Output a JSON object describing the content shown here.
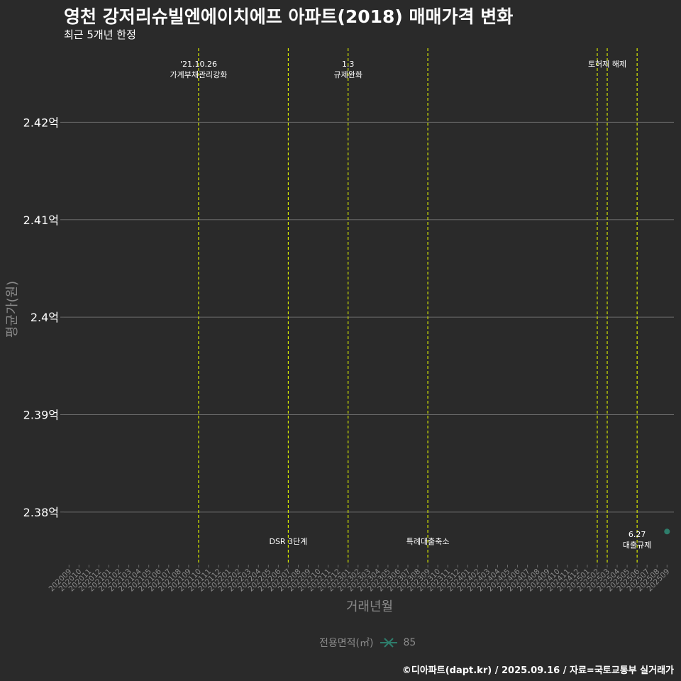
{
  "chart_data": {
    "type": "scatter",
    "title": "영천 강저리슈빌엔에이치에프 아파트(2018) 매매가격 변화",
    "subtitle": "최근 5개년 한정",
    "xlabel": "거래년월",
    "ylabel": "평균가(원)",
    "y_ticks": [
      {
        "value": 2.38,
        "label": "2.38억"
      },
      {
        "value": 2.39,
        "label": "2.39억"
      },
      {
        "value": 2.4,
        "label": "2.4억"
      },
      {
        "value": 2.41,
        "label": "2.41억"
      },
      {
        "value": 2.42,
        "label": "2.42억"
      }
    ],
    "ylim": [
      2.3746,
      2.4276
    ],
    "x_categories": [
      "202009",
      "202010",
      "202011",
      "202012",
      "202101",
      "202102",
      "202103",
      "202104",
      "202105",
      "202106",
      "202107",
      "202108",
      "202109",
      "202110",
      "202111",
      "202112",
      "202201",
      "202202",
      "202203",
      "202204",
      "202205",
      "202206",
      "202207",
      "202208",
      "202209",
      "202210",
      "202211",
      "202212",
      "202301",
      "202302",
      "202303",
      "202304",
      "202305",
      "202306",
      "202307",
      "202308",
      "202309",
      "202310",
      "202311",
      "202312",
      "202401",
      "202402",
      "202403",
      "202404",
      "202405",
      "202406",
      "202407",
      "202408",
      "202409",
      "202410",
      "202411",
      "202412",
      "202501",
      "202502",
      "202503",
      "202504",
      "202505",
      "202506",
      "202507",
      "202508",
      "202509"
    ],
    "events": [
      {
        "x": 13.0,
        "lines": [
          "'21.10.26",
          "가계부채관리강화"
        ],
        "position": "top"
      },
      {
        "x": 22.0,
        "lines": [
          "DSR 3단계"
        ],
        "position": "bottom"
      },
      {
        "x": 28.0,
        "lines": [
          "1.3",
          "규제완화"
        ],
        "position": "top"
      },
      {
        "x": 36.0,
        "lines": [
          "특례대출축소"
        ],
        "position": "bottom"
      },
      {
        "x": 53.0,
        "lines": [],
        "position": "none"
      },
      {
        "x": 54.0,
        "lines": [
          "토허제 해제"
        ],
        "position": "top"
      },
      {
        "x": 57.0,
        "lines": [
          "6.27",
          "대출규제"
        ],
        "position": "bottom"
      }
    ],
    "series": [
      {
        "name": "85",
        "color": "#2e7d6b",
        "points": [
          {
            "x": "202509",
            "y": 2.378
          }
        ]
      }
    ],
    "legend_title": "전용면적(㎡)"
  },
  "caption": "©디아파트(dapt.kr) / 2025.09.16 / 자료=국토교통부 실거래가",
  "colors": {
    "background": "#2a2a2a",
    "grid": "#6a6a6a",
    "event_line": "#d4e600",
    "point": "#2e7d6b",
    "axis_text": "#8a8a8a"
  }
}
